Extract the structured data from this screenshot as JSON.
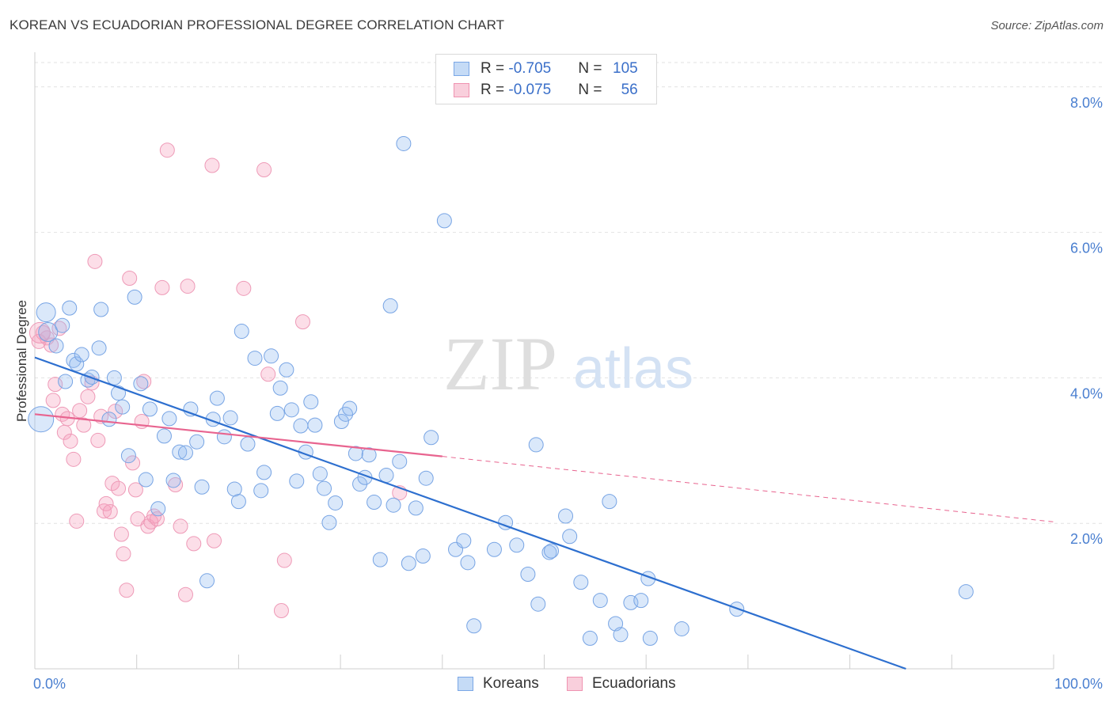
{
  "header": {
    "title": "KOREAN VS ECUADORIAN PROFESSIONAL DEGREE CORRELATION CHART",
    "source": "Source: ZipAtlas.com"
  },
  "watermark": {
    "zip": "ZIP",
    "atlas": "atlas"
  },
  "legend": {
    "rows": [
      {
        "r_label": "R = ",
        "r_value": "-0.705",
        "n_label": "N = ",
        "n_value": "105",
        "color": "#a9c8f2"
      },
      {
        "r_label": "R = ",
        "r_value": "-0.075",
        "n_label": "N = ",
        "n_value": "56",
        "color": "#f5b8cb"
      }
    ]
  },
  "bottom_legend": {
    "koreans": "Koreans",
    "ecuadorians": "Ecuadorians"
  },
  "chart_data": {
    "type": "scatter",
    "title": "KOREAN VS ECUADORIAN PROFESSIONAL DEGREE CORRELATION CHART",
    "xlabel": "",
    "ylabel": "Professional Degree",
    "xlim": [
      0,
      100
    ],
    "ylim": [
      0,
      8.4
    ],
    "x_tick_labels": [
      "0.0%",
      "100.0%"
    ],
    "y_ticks": [
      2,
      4,
      6,
      8
    ],
    "y_tick_labels": [
      "2.0%",
      "4.0%",
      "6.0%",
      "8.0%"
    ],
    "grid": true,
    "series": [
      {
        "name": "Koreans",
        "color": "#6fa3e8",
        "line_color": "#2d6fcf",
        "trend": {
          "x": [
            0,
            85.5
          ],
          "y": [
            4.28,
            0.0
          ]
        },
        "points": [
          [
            0.6,
            3.43
          ],
          [
            1.1,
            4.9
          ],
          [
            1.3,
            4.63
          ],
          [
            2.1,
            4.44
          ],
          [
            2.7,
            4.72
          ],
          [
            3.4,
            4.96
          ],
          [
            3.8,
            4.24
          ],
          [
            4.1,
            4.19
          ],
          [
            4.6,
            4.32
          ],
          [
            5.2,
            3.97
          ],
          [
            5.6,
            4.01
          ],
          [
            6.3,
            4.41
          ],
          [
            6.5,
            4.94
          ],
          [
            7.3,
            3.43
          ],
          [
            7.8,
            4.0
          ],
          [
            8.2,
            3.79
          ],
          [
            8.6,
            3.6
          ],
          [
            9.2,
            2.93
          ],
          [
            9.8,
            5.11
          ],
          [
            10.4,
            3.92
          ],
          [
            10.9,
            2.6
          ],
          [
            11.3,
            3.57
          ],
          [
            12.1,
            2.2
          ],
          [
            12.7,
            3.2
          ],
          [
            13.2,
            3.44
          ],
          [
            13.6,
            2.59
          ],
          [
            14.2,
            2.98
          ],
          [
            14.8,
            2.97
          ],
          [
            15.3,
            3.57
          ],
          [
            15.9,
            3.12
          ],
          [
            16.4,
            2.5
          ],
          [
            16.9,
            1.21
          ],
          [
            17.5,
            3.43
          ],
          [
            17.9,
            3.72
          ],
          [
            18.6,
            3.19
          ],
          [
            19.2,
            3.45
          ],
          [
            19.6,
            2.47
          ],
          [
            20.0,
            2.3
          ],
          [
            20.3,
            4.64
          ],
          [
            20.9,
            3.09
          ],
          [
            21.6,
            4.27
          ],
          [
            22.2,
            2.45
          ],
          [
            22.5,
            2.7
          ],
          [
            23.2,
            4.3
          ],
          [
            23.8,
            3.51
          ],
          [
            24.1,
            3.86
          ],
          [
            24.7,
            4.11
          ],
          [
            25.2,
            3.56
          ],
          [
            25.7,
            2.58
          ],
          [
            26.1,
            3.34
          ],
          [
            26.6,
            2.98
          ],
          [
            27.1,
            3.67
          ],
          [
            27.5,
            3.35
          ],
          [
            28.0,
            2.68
          ],
          [
            28.4,
            2.48
          ],
          [
            28.9,
            2.01
          ],
          [
            29.5,
            2.28
          ],
          [
            30.1,
            3.4
          ],
          [
            30.5,
            3.5
          ],
          [
            30.9,
            3.58
          ],
          [
            31.5,
            2.96
          ],
          [
            31.9,
            2.54
          ],
          [
            32.4,
            2.63
          ],
          [
            32.8,
            2.94
          ],
          [
            33.3,
            2.29
          ],
          [
            33.9,
            1.5
          ],
          [
            34.5,
            2.66
          ],
          [
            34.9,
            4.99
          ],
          [
            35.2,
            2.25
          ],
          [
            35.8,
            2.85
          ],
          [
            36.2,
            7.22
          ],
          [
            36.7,
            1.45
          ],
          [
            37.4,
            2.21
          ],
          [
            38.1,
            1.55
          ],
          [
            38.4,
            2.62
          ],
          [
            38.9,
            3.18
          ],
          [
            40.2,
            6.16
          ],
          [
            41.3,
            1.64
          ],
          [
            42.1,
            1.76
          ],
          [
            42.5,
            1.46
          ],
          [
            43.1,
            0.59
          ],
          [
            45.1,
            1.64
          ],
          [
            46.2,
            2.01
          ],
          [
            47.3,
            1.7
          ],
          [
            48.4,
            1.3
          ],
          [
            49.4,
            0.89
          ],
          [
            49.2,
            3.08
          ],
          [
            50.5,
            1.6
          ],
          [
            50.7,
            1.62
          ],
          [
            52.1,
            2.1
          ],
          [
            52.5,
            1.82
          ],
          [
            53.6,
            1.19
          ],
          [
            54.5,
            0.42
          ],
          [
            55.5,
            0.94
          ],
          [
            56.4,
            2.3
          ],
          [
            57.0,
            0.62
          ],
          [
            57.5,
            0.47
          ],
          [
            58.5,
            0.91
          ],
          [
            59.5,
            0.94
          ],
          [
            60.2,
            1.24
          ],
          [
            60.4,
            0.42
          ],
          [
            63.5,
            0.55
          ],
          [
            68.9,
            0.82
          ],
          [
            91.4,
            1.06
          ],
          [
            3.0,
            3.95
          ]
        ]
      },
      {
        "name": "Ecuadorians",
        "color": "#f29bb8",
        "line_color": "#e8648f",
        "trend": {
          "x": [
            0,
            40.0
          ],
          "y": [
            3.5,
            2.92
          ]
        },
        "trend_dashed": {
          "x": [
            40.0,
            100
          ],
          "y": [
            2.92,
            2.02
          ]
        },
        "points": [
          [
            0.4,
            4.5
          ],
          [
            0.8,
            4.62
          ],
          [
            1.2,
            4.55
          ],
          [
            1.6,
            4.45
          ],
          [
            2.0,
            3.91
          ],
          [
            1.8,
            3.69
          ],
          [
            2.4,
            4.68
          ],
          [
            2.7,
            3.5
          ],
          [
            2.9,
            3.25
          ],
          [
            3.2,
            3.44
          ],
          [
            3.5,
            3.13
          ],
          [
            3.8,
            2.88
          ],
          [
            4.1,
            2.03
          ],
          [
            4.4,
            3.55
          ],
          [
            4.8,
            3.35
          ],
          [
            5.2,
            3.74
          ],
          [
            5.6,
            3.93
          ],
          [
            5.9,
            5.6
          ],
          [
            6.2,
            3.14
          ],
          [
            6.5,
            3.47
          ],
          [
            6.8,
            2.17
          ],
          [
            7.0,
            2.27
          ],
          [
            7.4,
            2.16
          ],
          [
            7.6,
            2.55
          ],
          [
            7.9,
            3.54
          ],
          [
            8.2,
            2.48
          ],
          [
            8.5,
            1.85
          ],
          [
            8.7,
            1.58
          ],
          [
            9.0,
            1.08
          ],
          [
            9.3,
            5.37
          ],
          [
            9.6,
            2.83
          ],
          [
            9.9,
            2.46
          ],
          [
            10.1,
            2.06
          ],
          [
            10.5,
            3.4
          ],
          [
            10.7,
            3.95
          ],
          [
            11.1,
            1.96
          ],
          [
            11.4,
            2.02
          ],
          [
            11.7,
            2.1
          ],
          [
            12.0,
            2.06
          ],
          [
            12.5,
            5.24
          ],
          [
            13.0,
            7.13
          ],
          [
            13.8,
            2.53
          ],
          [
            14.3,
            1.96
          ],
          [
            14.8,
            1.02
          ],
          [
            15.0,
            5.26
          ],
          [
            15.6,
            1.72
          ],
          [
            17.4,
            6.92
          ],
          [
            17.6,
            1.76
          ],
          [
            20.5,
            5.23
          ],
          [
            22.5,
            6.86
          ],
          [
            22.9,
            4.05
          ],
          [
            24.2,
            0.8
          ],
          [
            24.5,
            1.49
          ],
          [
            26.3,
            4.77
          ],
          [
            35.8,
            2.42
          ],
          [
            0.5,
            4.62
          ]
        ]
      }
    ]
  }
}
